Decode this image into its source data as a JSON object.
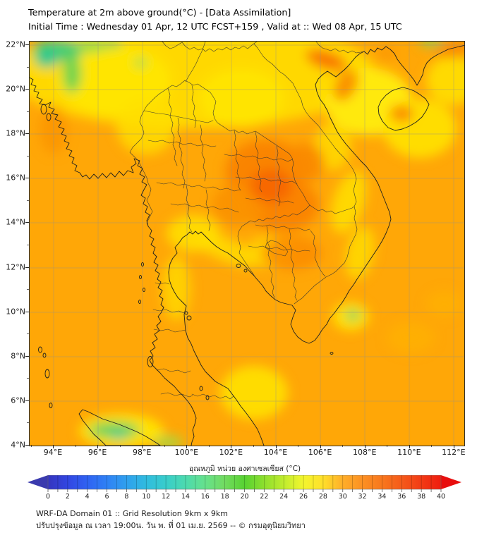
{
  "header": {
    "title": "Temperature at 2m above ground(°C) - [Data Assimilation]",
    "subtitle": "Initial Time : Wednesday 01 Apr, 12 UTC FCST+159 , Valid at :: Wed 08 Apr, 15 UTC"
  },
  "map": {
    "lat_ticks": [
      "22°N",
      "20°N",
      "18°N",
      "16°N",
      "14°N",
      "12°N",
      "10°N",
      "8°N",
      "6°N",
      "4°N"
    ],
    "lon_ticks": [
      "94°E",
      "96°E",
      "98°E",
      "100°E",
      "102°E",
      "104°E",
      "106°E",
      "108°E",
      "110°E",
      "112°E"
    ]
  },
  "colorbar": {
    "label": "อุณหภูมิ หน่วย องศาเซลเซียส (°C)",
    "unit": "°C",
    "ticks": [
      "0",
      "2",
      "4",
      "6",
      "8",
      "10",
      "12",
      "14",
      "16",
      "18",
      "20",
      "22",
      "24",
      "26",
      "28",
      "30",
      "32",
      "34",
      "36",
      "38",
      "40"
    ]
  },
  "footer": {
    "line1": "WRF-DA Domain 01 :: Grid Resolution 9km x 9km",
    "line2": "ปรับปรุงข้อมูล ณ เวลา 19:00น. วัน พ. ที่ 01 เม.ย. 2569 -- © กรมอุตุนิยมวิทยา"
  },
  "chart_data": {
    "type": "heatmap",
    "title": "Temperature at 2m above ground (°C) - Data Assimilation",
    "x_axis": {
      "label": "Longitude",
      "tick_labels": [
        "94°E",
        "96°E",
        "98°E",
        "100°E",
        "102°E",
        "104°E",
        "106°E",
        "108°E",
        "110°E",
        "112°E"
      ],
      "approx_range": [
        "93°E",
        "113°E"
      ]
    },
    "y_axis": {
      "label": "Latitude",
      "tick_labels": [
        "22°N",
        "20°N",
        "18°N",
        "16°N",
        "14°N",
        "12°N",
        "10°N",
        "8°N",
        "6°N",
        "4°N"
      ],
      "approx_range": [
        "4°N",
        "22°N"
      ]
    },
    "colorbar": {
      "label": "อุณหภูมิ หน่วย องศาเซลเซียส (°C)",
      "min": 0,
      "max": 40,
      "tick_step": 2,
      "unit": "°C"
    },
    "field_summary": [
      {
        "region": "Northeast Thailand / southern Laos plateau",
        "approx_temp_c": "34-36",
        "color": "deep orange"
      },
      {
        "region": "Open sea (Bay of Bengal, Gulf of Thailand, South China Sea)",
        "approx_temp_c": "30-31",
        "color": "orange"
      },
      {
        "region": "Northern mountains (top-left, ~21-22N 94-97E)",
        "approx_temp_c": "22-25",
        "color": "green"
      },
      {
        "region": "Gulf of Tonkin and Hainan surroundings",
        "approx_temp_c": "27-28",
        "color": "yellow"
      },
      {
        "region": "Central Vietnam coastal strip",
        "approx_temp_c": "27-29",
        "color": "yellow"
      },
      {
        "region": "Eastern Cambodia / Mekong lowlands",
        "approx_temp_c": "33-34",
        "color": "dark orange"
      },
      {
        "region": "Sumatra highlands (bottom-left)",
        "approx_temp_c": "22-24",
        "color": "green-cyan"
      },
      {
        "region": "Head of Gulf of Thailand near Bangkok",
        "approx_temp_c": "28",
        "color": "yellow"
      }
    ],
    "grid": "2-degree lat/lon graticule, light gray"
  }
}
